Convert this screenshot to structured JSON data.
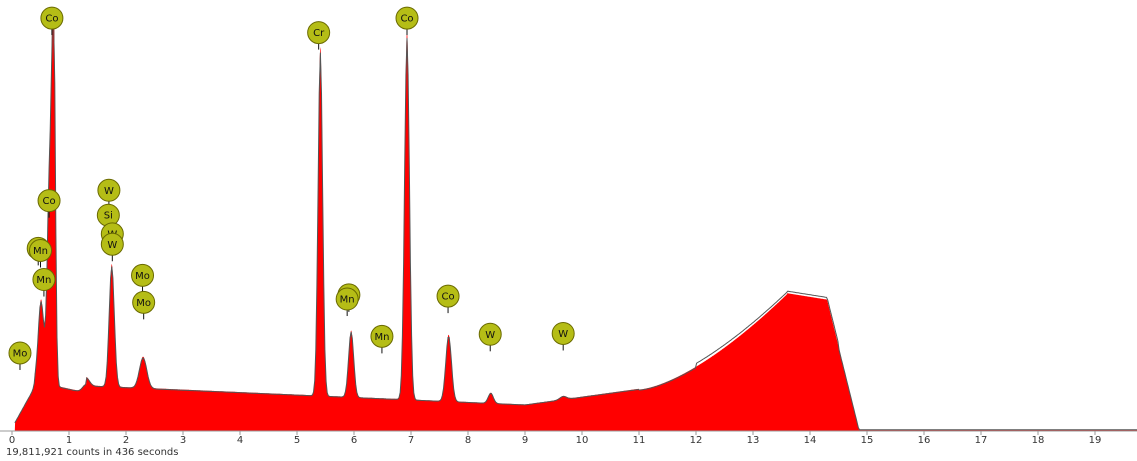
{
  "chart_data": {
    "type": "area",
    "xlabel": "",
    "ylabel": "",
    "xlim": [
      0,
      19.8
    ],
    "ylim": [
      0,
      1000
    ],
    "x_ticks": [
      "0",
      "1",
      "2",
      "3",
      "4",
      "5",
      "6",
      "7",
      "8",
      "9",
      "10",
      "11",
      "12",
      "13",
      "14",
      "15",
      "16",
      "17",
      "18",
      "19"
    ],
    "colors": {
      "fill": "#ff0000",
      "fit_line": "#555555",
      "marker_fill": "#b5bd16",
      "marker_stroke": "#6a6a00"
    },
    "peak_labels": [
      {
        "label": "Co",
        "x": 0.7,
        "y": 995
      },
      {
        "label": "Cr",
        "x": 5.38,
        "y": 960
      },
      {
        "label": "Co",
        "x": 6.93,
        "y": 995
      },
      {
        "label": "Co",
        "x": 0.65,
        "y": 555
      },
      {
        "label": "W",
        "x": 1.7,
        "y": 580
      },
      {
        "label": "Si",
        "x": 1.69,
        "y": 520
      },
      {
        "label": "W",
        "x": 1.76,
        "y": 475
      },
      {
        "label": "W",
        "x": 1.76,
        "y": 450
      },
      {
        "label": "Mn",
        "x": 0.46,
        "y": 440
      },
      {
        "label": "Mn",
        "x": 0.5,
        "y": 435
      },
      {
        "label": "Mn",
        "x": 0.56,
        "y": 365
      },
      {
        "label": "Mo",
        "x": 2.29,
        "y": 375
      },
      {
        "label": "Mo",
        "x": 2.31,
        "y": 310
      },
      {
        "label": "Co",
        "x": 5.91,
        "y": 328
      },
      {
        "label": "Mn",
        "x": 5.88,
        "y": 318
      },
      {
        "label": "Mn",
        "x": 6.49,
        "y": 228
      },
      {
        "label": "Co",
        "x": 7.65,
        "y": 325
      },
      {
        "label": "W",
        "x": 8.39,
        "y": 233
      },
      {
        "label": "W",
        "x": 9.67,
        "y": 235
      },
      {
        "label": "Mo",
        "x": 0.14,
        "y": 188
      }
    ]
  },
  "footer": {
    "counts_text": "19,811,921 counts in 436 seconds"
  }
}
